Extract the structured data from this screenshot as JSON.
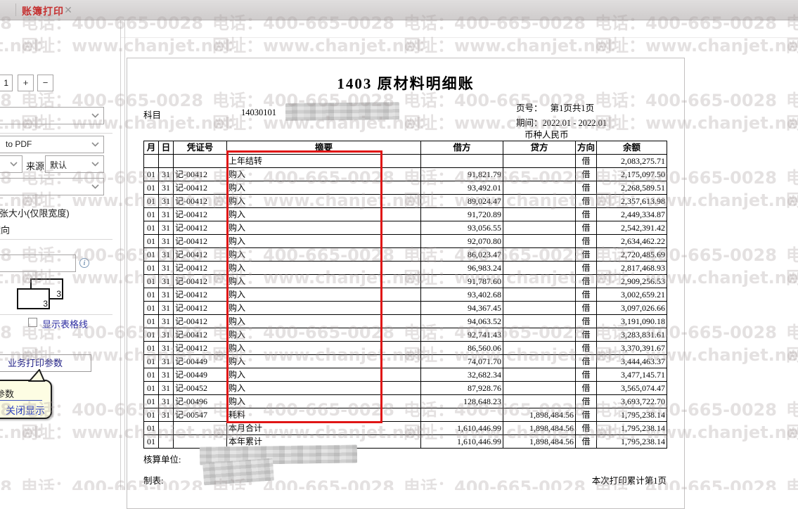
{
  "tab": {
    "title": "账簿打印",
    "close_icon": "✕"
  },
  "watermark": {
    "line1": "电话：400-665-0028",
    "line2": "网址：www.chanjet.net"
  },
  "sidebar": {
    "page_number_value": "1",
    "zoom_in_label": "+",
    "zoom_out_label": "−",
    "printer_value": "to PDF",
    "source_label": "来源",
    "source_value": "默认",
    "paper_size_label": "纸张大小(仅限宽度)",
    "orientation_label": "横向",
    "pages_icon_number": "3",
    "show_gridlines_label": "显示表格线",
    "business_print_button": "业务打印参数",
    "callout": {
      "line1": "参数",
      "close_link": "关闭显示"
    }
  },
  "document": {
    "title": "1403 原材料明细账",
    "subject_label": "科目",
    "subject_code": "14030101",
    "page_no_label": "页号：",
    "page_no_value": "第1页共1页",
    "period_label": "期间：",
    "period_value": "2022.01 - 2022.01",
    "currency_line": "币种人民币",
    "table": {
      "headers": [
        "月",
        "日",
        "凭证号",
        "摘要",
        "借方",
        "贷方",
        "方向",
        "余额"
      ],
      "rows": [
        [
          "",
          "",
          "",
          "上年结转",
          "",
          "",
          "借",
          "2,083,275.71"
        ],
        [
          "01",
          "31",
          "记-00412",
          "购入",
          "91,821.79",
          "",
          "借",
          "2,175,097.50"
        ],
        [
          "01",
          "31",
          "记-00412",
          "购入",
          "93,492.01",
          "",
          "借",
          "2,268,589.51"
        ],
        [
          "01",
          "31",
          "记-00412",
          "购入",
          "89,024.47",
          "",
          "借",
          "2,357,613.98"
        ],
        [
          "01",
          "31",
          "记-00412",
          "购入",
          "91,720.89",
          "",
          "借",
          "2,449,334.87"
        ],
        [
          "01",
          "31",
          "记-00412",
          "购入",
          "93,056.55",
          "",
          "借",
          "2,542,391.42"
        ],
        [
          "01",
          "31",
          "记-00412",
          "购入",
          "92,070.80",
          "",
          "借",
          "2,634,462.22"
        ],
        [
          "01",
          "31",
          "记-00412",
          "购入",
          "86,023.47",
          "",
          "借",
          "2,720,485.69"
        ],
        [
          "01",
          "31",
          "记-00412",
          "购入",
          "96,983.24",
          "",
          "借",
          "2,817,468.93"
        ],
        [
          "01",
          "31",
          "记-00412",
          "购入",
          "91,787.60",
          "",
          "借",
          "2,909,256.53"
        ],
        [
          "01",
          "31",
          "记-00412",
          "购入",
          "93,402.68",
          "",
          "借",
          "3,002,659.21"
        ],
        [
          "01",
          "31",
          "记-00412",
          "购入",
          "94,367.45",
          "",
          "借",
          "3,097,026.66"
        ],
        [
          "01",
          "31",
          "记-00412",
          "购入",
          "94,063.52",
          "",
          "借",
          "3,191,090.18"
        ],
        [
          "01",
          "31",
          "记-00412",
          "购入",
          "92,741.43",
          "",
          "借",
          "3,283,831.61"
        ],
        [
          "01",
          "31",
          "记-00412",
          "购入",
          "86,560.06",
          "",
          "借",
          "3,370,391.67"
        ],
        [
          "01",
          "31",
          "记-00449",
          "购入",
          "74,071.70",
          "",
          "借",
          "3,444,463.37"
        ],
        [
          "01",
          "31",
          "记-00449",
          "购入",
          "32,682.34",
          "",
          "借",
          "3,477,145.71"
        ],
        [
          "01",
          "31",
          "记-00452",
          "购入",
          "87,928.76",
          "",
          "借",
          "3,565,074.47"
        ],
        [
          "01",
          "31",
          "记-00496",
          "购入",
          "128,648.23",
          "",
          "借",
          "3,693,722.70"
        ],
        [
          "01",
          "31",
          "记-00547",
          "耗料",
          "",
          "1,898,484.56",
          "借",
          "1,795,238.14"
        ],
        [
          "01",
          "",
          "",
          "本月合计",
          "1,610,446.99",
          "1,898,484.56",
          "借",
          "1,795,238.14"
        ],
        [
          "01",
          "",
          "",
          "本年累计",
          "1,610,446.99",
          "1,898,484.56",
          "借",
          "1,795,238.14"
        ]
      ]
    },
    "footer": {
      "unit_label": "核算单位:",
      "preparer_label": "制表:",
      "print_total": "本次打印累计第1页"
    }
  },
  "colors": {
    "annotation_red": "#e01515",
    "tab_red": "#c53232",
    "link_blue": "#2a3fc0",
    "watermark_gray": "rgba(167,155,155,0.30)"
  },
  "icons": {
    "close": "close-icon",
    "chevron": "chevron-down-icon",
    "info": "info-icon",
    "pages": "pages-icon",
    "checkbox": "checkbox-unchecked"
  }
}
